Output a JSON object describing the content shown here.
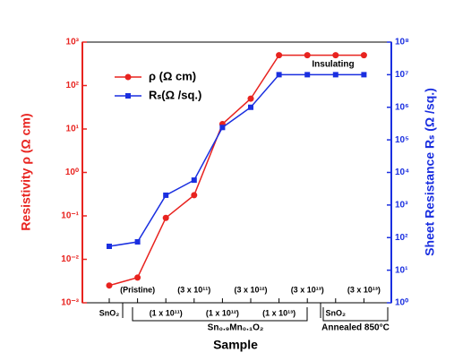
{
  "chart_data": {
    "type": "line",
    "x_label": "Sample",
    "y_label": "Resistivity ρ (Ω cm)",
    "y2_label": "Sheet Resistance Rₛ (Ω /sq.)",
    "categories": [
      "SnO₂",
      "(Pristine)",
      "(1 x 10¹¹)",
      "(3 x 10¹¹)",
      "(1 x 10¹²)",
      "(3 x 10¹²)",
      "(1 x 10¹³)",
      "(3 x 10¹³)",
      "SnO₂",
      "(3 x 10¹³)"
    ],
    "groups": [
      "Sn₀.₉Mn₀.₁O₂",
      "Annealed 850°C"
    ],
    "annotation": "Insulating",
    "log_y": true,
    "log_y2": true,
    "ylim": [
      0.001,
      1000
    ],
    "yticks": [
      {
        "value": 0.001,
        "label": "10⁻³"
      },
      {
        "value": 0.01,
        "label": "10⁻²"
      },
      {
        "value": 0.1,
        "label": "10⁻¹"
      },
      {
        "value": 1,
        "label": "10⁰"
      },
      {
        "value": 10,
        "label": "10¹"
      },
      {
        "value": 100,
        "label": "10²"
      },
      {
        "value": 1000,
        "label": "10³"
      }
    ],
    "y2lim": [
      1,
      100000000
    ],
    "y2ticks": [
      {
        "value": 1,
        "label": "10⁰"
      },
      {
        "value": 10,
        "label": "10¹"
      },
      {
        "value": 100,
        "label": "10²"
      },
      {
        "value": 1000,
        "label": "10³"
      },
      {
        "value": 10000,
        "label": "10⁴"
      },
      {
        "value": 100000,
        "label": "10⁵"
      },
      {
        "value": 1000000,
        "label": "10⁶"
      },
      {
        "value": 10000000,
        "label": "10⁷"
      },
      {
        "value": 100000000,
        "label": "10⁸"
      }
    ],
    "legend": "upper left",
    "series": [
      {
        "name": "ρ (Ω cm)",
        "color": "#e8231f",
        "marker": "circle",
        "values": [
          0.0025,
          0.0038,
          0.09,
          0.3,
          13,
          50,
          500,
          500,
          500,
          500
        ]
      },
      {
        "name": "Rₛ(Ω /sq.)",
        "color": "#1a2fe0",
        "marker": "square",
        "axis": "y2",
        "values": [
          54,
          74,
          2000,
          5800,
          240000,
          1000000,
          10000000,
          10000000,
          10000000,
          10000000
        ]
      }
    ]
  }
}
